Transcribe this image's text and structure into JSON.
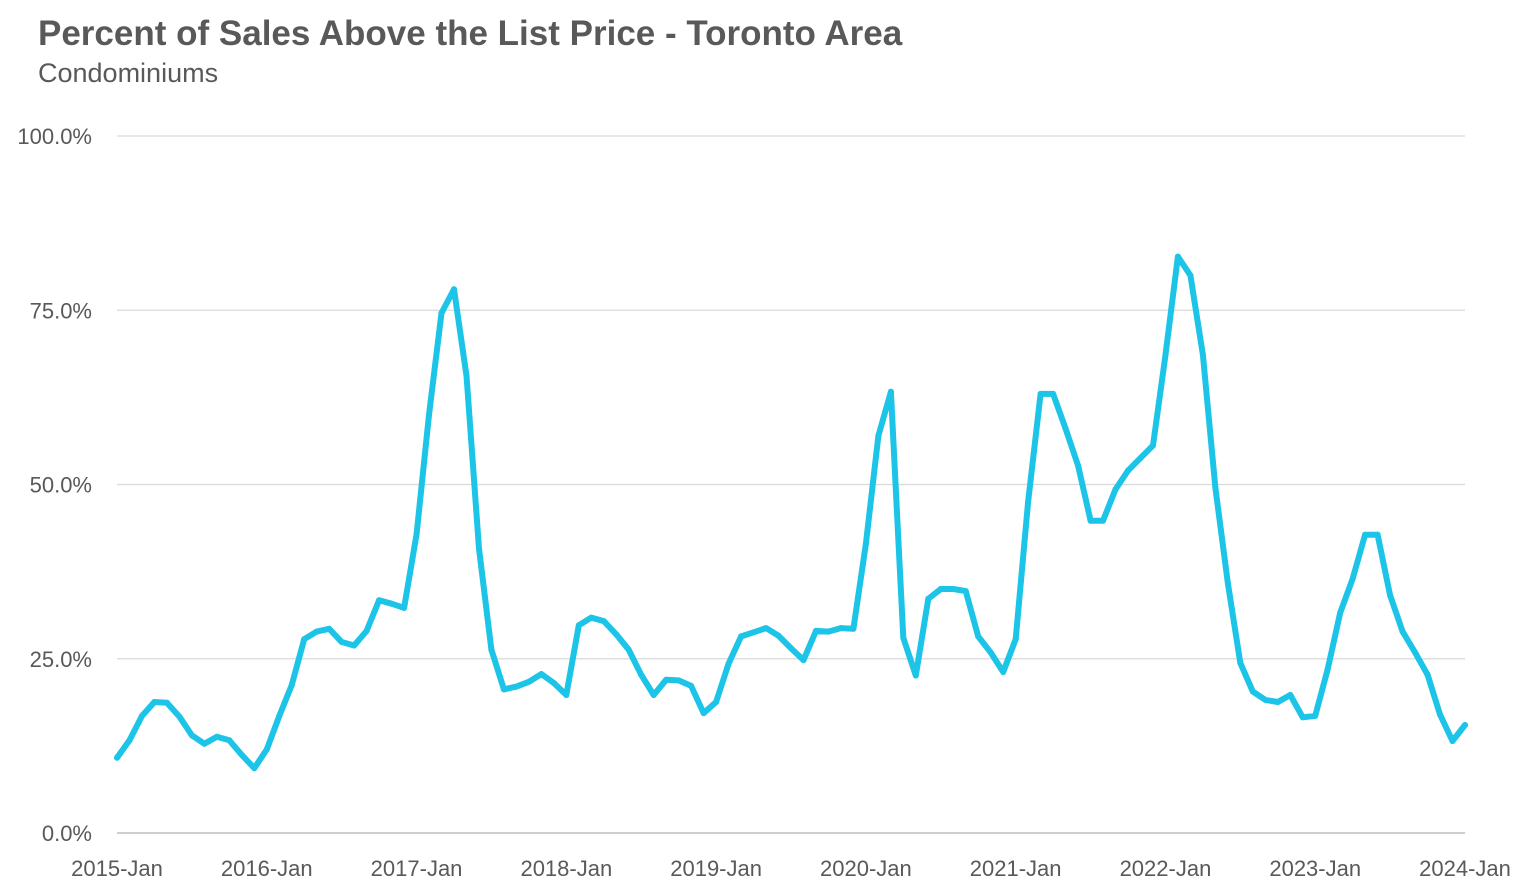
{
  "chart_data": {
    "type": "line",
    "title": "Percent of Sales Above the List Price - Toronto Area",
    "subtitle": "Condominiums",
    "xlabel": "",
    "ylabel": "",
    "ylim": [
      0,
      100
    ],
    "y_ticks": [
      0,
      25,
      50,
      75,
      100
    ],
    "y_tick_labels": [
      "0.0%",
      "25.0%",
      "50.0%",
      "75.0%",
      "100.0%"
    ],
    "x_tick_labels": [
      "2015-Jan",
      "2016-Jan",
      "2017-Jan",
      "2018-Jan",
      "2019-Jan",
      "2020-Jan",
      "2021-Jan",
      "2022-Jan",
      "2023-Jan",
      "2024-Jan"
    ],
    "x_start": "2015-Jan",
    "x_end": "2024-Jan",
    "grid": true,
    "legend": "none",
    "series": [
      {
        "color": "#1CC4E8",
        "points": [
          [
            "2015-Jan",
            10.8
          ],
          [
            "2015-Feb",
            13.3
          ],
          [
            "2015-Mar",
            16.8
          ],
          [
            "2015-Apr",
            18.8
          ],
          [
            "2015-May",
            18.7
          ],
          [
            "2015-Jun",
            16.7
          ],
          [
            "2015-Jul",
            14.0
          ],
          [
            "2015-Aug",
            12.8
          ],
          [
            "2015-Sep",
            13.8
          ],
          [
            "2015-Oct",
            13.3
          ],
          [
            "2015-Nov",
            11.2
          ],
          [
            "2015-Dec",
            9.3
          ],
          [
            "2016-Jan",
            12.0
          ],
          [
            "2016-Feb",
            16.8
          ],
          [
            "2016-Mar",
            21.2
          ],
          [
            "2016-Apr",
            27.8
          ],
          [
            "2016-May",
            28.9
          ],
          [
            "2016-Jun",
            29.3
          ],
          [
            "2016-Jul",
            27.4
          ],
          [
            "2016-Aug",
            26.9
          ],
          [
            "2016-Sep",
            29.0
          ],
          [
            "2016-Oct",
            33.4
          ],
          [
            "2016-Nov",
            32.9
          ],
          [
            "2016-Dec",
            32.3
          ],
          [
            "2017-Jan",
            42.9
          ],
          [
            "2017-Feb",
            60.0
          ],
          [
            "2017-Mar",
            74.6
          ],
          [
            "2017-Apr",
            78.0
          ],
          [
            "2017-May",
            65.6
          ],
          [
            "2017-Jun",
            40.8
          ],
          [
            "2017-Jul",
            26.3
          ],
          [
            "2017-Aug",
            20.6
          ],
          [
            "2017-Sep",
            21.0
          ],
          [
            "2017-Oct",
            21.7
          ],
          [
            "2017-Nov",
            22.8
          ],
          [
            "2017-Dec",
            21.5
          ],
          [
            "2018-Jan",
            19.8
          ],
          [
            "2018-Feb",
            29.8
          ],
          [
            "2018-Mar",
            30.9
          ],
          [
            "2018-Apr",
            30.4
          ],
          [
            "2018-May",
            28.5
          ],
          [
            "2018-Jun",
            26.3
          ],
          [
            "2018-Jul",
            22.7
          ],
          [
            "2018-Aug",
            19.8
          ],
          [
            "2018-Sep",
            22.0
          ],
          [
            "2018-Oct",
            21.9
          ],
          [
            "2018-Nov",
            21.1
          ],
          [
            "2018-Dec",
            17.2
          ],
          [
            "2019-Jan",
            18.8
          ],
          [
            "2019-Feb",
            24.3
          ],
          [
            "2019-Mar",
            28.2
          ],
          [
            "2019-Apr",
            28.8
          ],
          [
            "2019-May",
            29.4
          ],
          [
            "2019-Jun",
            28.3
          ],
          [
            "2019-Jul",
            26.5
          ],
          [
            "2019-Aug",
            24.8
          ],
          [
            "2019-Sep",
            29.0
          ],
          [
            "2019-Oct",
            28.9
          ],
          [
            "2019-Nov",
            29.4
          ],
          [
            "2019-Dec",
            29.3
          ],
          [
            "2020-Jan",
            41.5
          ],
          [
            "2020-Feb",
            57.0
          ],
          [
            "2020-Mar",
            63.3
          ],
          [
            "2020-Apr",
            28.0
          ],
          [
            "2020-May",
            22.6
          ],
          [
            "2020-Jun",
            33.6
          ],
          [
            "2020-Jul",
            35.0
          ],
          [
            "2020-Aug",
            35.0
          ],
          [
            "2020-Sep",
            34.7
          ],
          [
            "2020-Oct",
            28.2
          ],
          [
            "2020-Nov",
            25.9
          ],
          [
            "2020-Dec",
            23.1
          ],
          [
            "2021-Jan",
            27.8
          ],
          [
            "2021-Feb",
            47.5
          ],
          [
            "2021-Mar",
            63.0
          ],
          [
            "2021-Apr",
            63.0
          ],
          [
            "2021-May",
            58.0
          ],
          [
            "2021-Jun",
            52.7
          ],
          [
            "2021-Jul",
            44.8
          ],
          [
            "2021-Aug",
            44.8
          ],
          [
            "2021-Sep",
            49.3
          ],
          [
            "2021-Oct",
            52.0
          ],
          [
            "2021-Nov",
            53.8
          ],
          [
            "2021-Dec",
            55.6
          ],
          [
            "2022-Jan",
            68.5
          ],
          [
            "2022-Feb",
            82.7
          ],
          [
            "2022-Mar",
            80.0
          ],
          [
            "2022-Apr",
            68.6
          ],
          [
            "2022-May",
            49.5
          ],
          [
            "2022-Jun",
            35.8
          ],
          [
            "2022-Jul",
            24.4
          ],
          [
            "2022-Aug",
            20.3
          ],
          [
            "2022-Sep",
            19.1
          ],
          [
            "2022-Oct",
            18.8
          ],
          [
            "2022-Nov",
            19.8
          ],
          [
            "2022-Dec",
            16.6
          ],
          [
            "2023-Jan",
            16.8
          ],
          [
            "2023-Feb",
            23.5
          ],
          [
            "2023-Mar",
            31.6
          ],
          [
            "2023-Apr",
            36.5
          ],
          [
            "2023-May",
            42.8
          ],
          [
            "2023-Jun",
            42.8
          ],
          [
            "2023-Jul",
            34.1
          ],
          [
            "2023-Aug",
            28.9
          ],
          [
            "2023-Sep",
            25.9
          ],
          [
            "2023-Oct",
            22.7
          ],
          [
            "2023-Nov",
            17.0
          ],
          [
            "2023-Dec",
            13.2
          ],
          [
            "2024-Jan",
            15.5
          ]
        ]
      }
    ]
  }
}
